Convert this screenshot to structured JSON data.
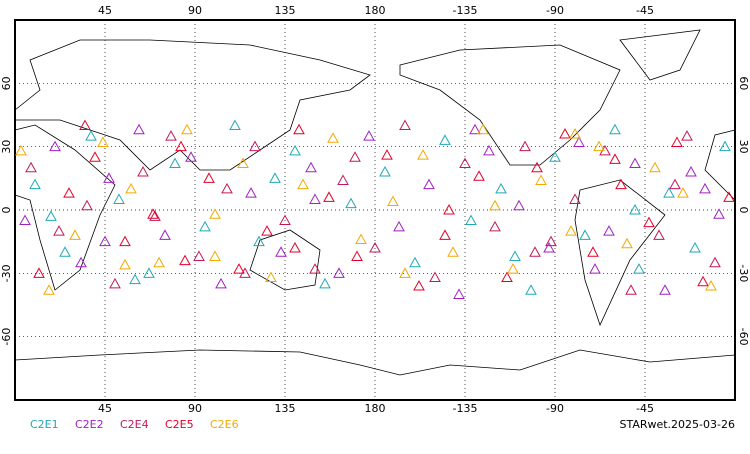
{
  "map": {
    "xlim": [
      0,
      360
    ],
    "ylim": [
      -90,
      90
    ],
    "grid": true,
    "xticks": [
      45,
      90,
      135,
      180,
      {
        "value": 225,
        "label": "-135"
      },
      {
        "value": 270,
        "label": "-90"
      },
      {
        "value": 315,
        "label": "-45"
      }
    ],
    "yticks": [
      60,
      30,
      0,
      -30,
      -60
    ],
    "series": [
      {
        "name": "C2E1",
        "color": "#1fa9b9",
        "x": [
          10,
          25,
          38,
          52,
          67,
          80,
          95,
          110,
          122,
          140,
          155,
          168,
          185,
          200,
          215,
          228,
          243,
          258,
          270,
          285,
          300,
          312,
          327,
          340,
          355,
          18,
          130,
          250,
          310,
          60
        ],
        "y": [
          12,
          -20,
          35,
          5,
          -30,
          22,
          -8,
          40,
          -15,
          28,
          -35,
          3,
          18,
          -25,
          33,
          -5,
          10,
          -38,
          25,
          -12,
          38,
          -28,
          8,
          -18,
          30,
          -3,
          15,
          -22,
          0,
          -33
        ]
      },
      {
        "name": "C2E2",
        "color": "#a21fc4",
        "x": [
          5,
          20,
          33,
          47,
          62,
          75,
          88,
          103,
          118,
          133,
          148,
          162,
          177,
          192,
          207,
          222,
          237,
          252,
          267,
          282,
          297,
          310,
          325,
          338,
          352,
          45,
          150,
          230,
          290,
          345
        ],
        "y": [
          -5,
          30,
          -25,
          15,
          38,
          -12,
          25,
          -35,
          8,
          -20,
          20,
          -30,
          35,
          -8,
          12,
          -40,
          28,
          2,
          -18,
          32,
          -10,
          22,
          -38,
          18,
          -2,
          -15,
          5,
          38,
          -28,
          10
        ]
      },
      {
        "name": "C2E4",
        "color": "#c2185b",
        "x": [
          8,
          22,
          36,
          50,
          64,
          78,
          92,
          106,
          120,
          135,
          150,
          164,
          180,
          195,
          210,
          225,
          240,
          255,
          268,
          280,
          295,
          308,
          322,
          336,
          350,
          70,
          170,
          260,
          330,
          115
        ],
        "y": [
          20,
          -10,
          2,
          -35,
          18,
          35,
          -22,
          10,
          30,
          -5,
          -28,
          14,
          -18,
          40,
          -32,
          22,
          -8,
          30,
          -15,
          5,
          28,
          -38,
          -12,
          35,
          -25,
          -3,
          25,
          -20,
          12,
          -30
        ]
      },
      {
        "name": "C2E5",
        "color": "#e4002b",
        "x": [
          12,
          27,
          40,
          55,
          69,
          83,
          97,
          112,
          126,
          142,
          157,
          171,
          186,
          202,
          217,
          232,
          246,
          261,
          275,
          289,
          303,
          317,
          331,
          344,
          357,
          35,
          140,
          215,
          300,
          85
        ],
        "y": [
          -30,
          8,
          25,
          -15,
          -2,
          30,
          15,
          -28,
          -10,
          38,
          6,
          -22,
          26,
          -36,
          0,
          16,
          -32,
          20,
          36,
          -20,
          12,
          -6,
          32,
          -34,
          6,
          40,
          -18,
          -12,
          24,
          -24
        ]
      },
      {
        "name": "C2E6",
        "color": "#f2a900",
        "x": [
          3,
          17,
          30,
          44,
          58,
          72,
          86,
          100,
          114,
          128,
          144,
          159,
          173,
          189,
          204,
          219,
          234,
          249,
          263,
          278,
          292,
          306,
          320,
          334,
          348,
          100,
          195,
          280,
          55,
          240
        ],
        "y": [
          28,
          -38,
          -12,
          32,
          10,
          -25,
          38,
          -2,
          22,
          -32,
          12,
          34,
          -14,
          4,
          26,
          -20,
          38,
          -28,
          14,
          -10,
          30,
          -16,
          20,
          8,
          -36,
          -22,
          -30,
          36,
          -26,
          2
        ]
      }
    ],
    "footer": "STARwet.2025-03-26"
  }
}
